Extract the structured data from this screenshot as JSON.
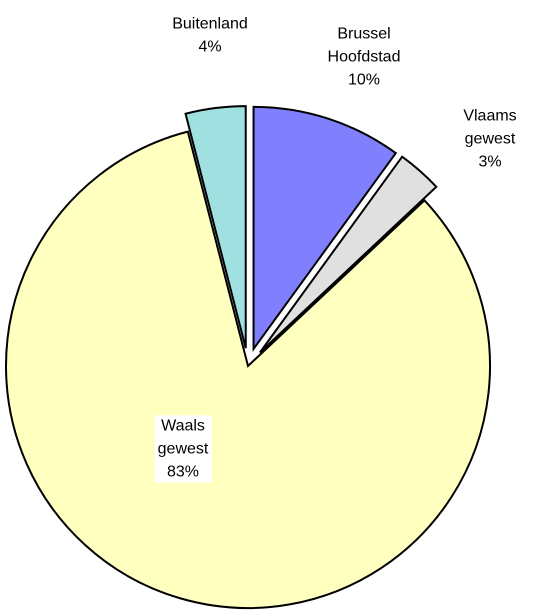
{
  "chart_data": {
    "type": "pie",
    "slices": [
      {
        "label": [
          "Brussel",
          "Hoofdstad"
        ],
        "value": 10,
        "value_label": "10%",
        "color": "#8080ff"
      },
      {
        "label": [
          "Vlaams",
          "gewest"
        ],
        "value": 3,
        "value_label": "3%",
        "color": "#e0e0e0"
      },
      {
        "label": [
          "Waals",
          "gewest"
        ],
        "value": 83,
        "value_label": "83%",
        "color": "#ffffc0"
      },
      {
        "label": [
          "Buitenland"
        ],
        "value": 4,
        "value_label": "4%",
        "color": "#a0e0e0"
      }
    ]
  }
}
